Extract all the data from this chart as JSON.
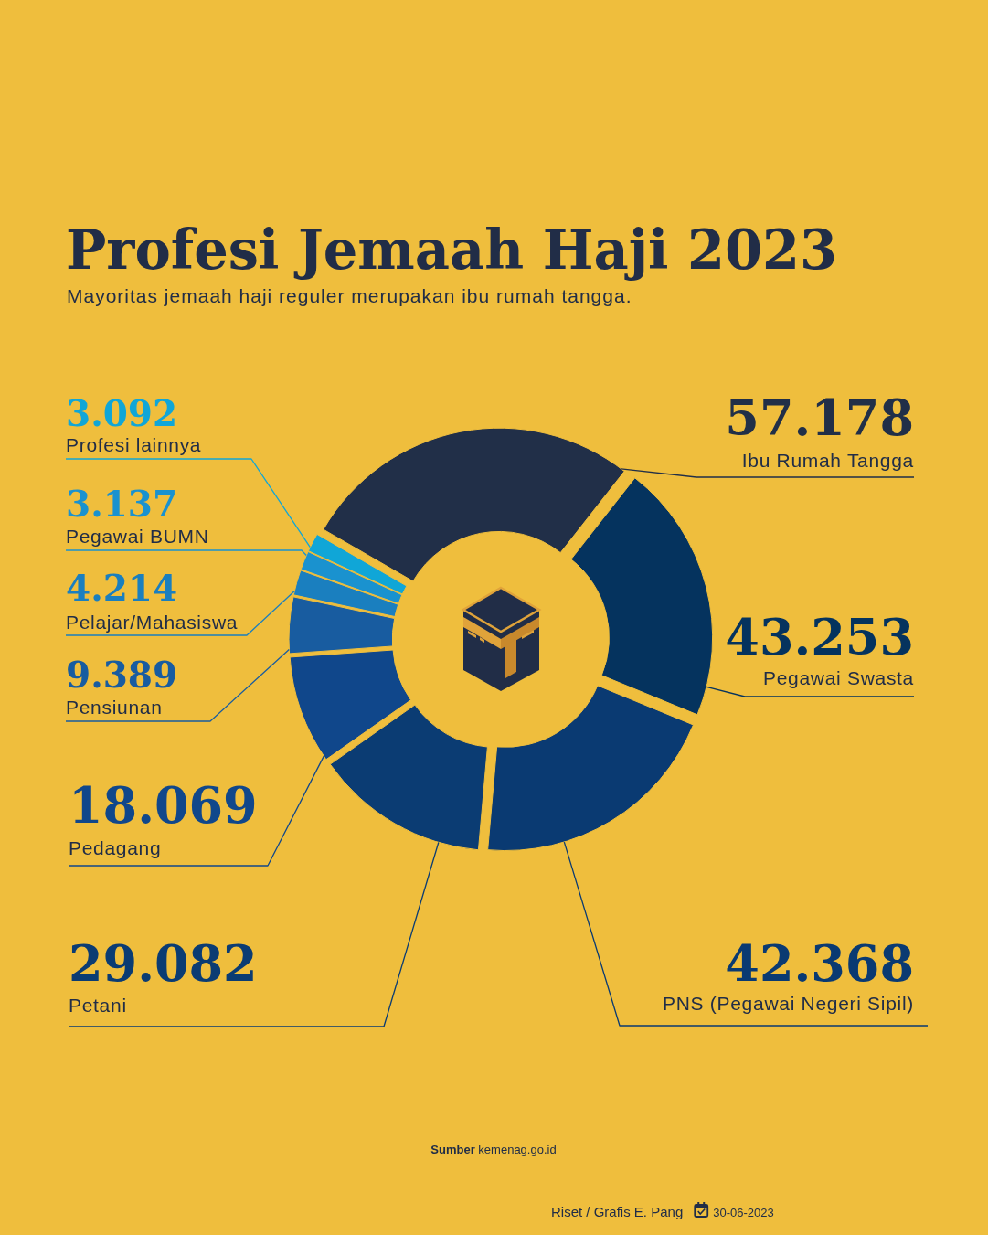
{
  "chart_data": {
    "type": "donut",
    "title": "Profesi Jemaah Haji 2023",
    "subtitle": "Mayoritas jemaah haji reguler merupakan ibu rumah tangga.",
    "categories": [
      "Ibu Rumah Tangga",
      "Pegawai Swasta",
      "PNS (Pegawai Negeri Sipil)",
      "Petani",
      "Pedagang",
      "Pensiunan",
      "Pelajar/Mahasiswa",
      "Pegawai BUMN",
      "Profesi lainnya"
    ],
    "values": [
      57178,
      43253,
      42368,
      29082,
      18069,
      9389,
      4214,
      3137,
      3092
    ],
    "colors": [
      "#212f48",
      "#05335e",
      "#0a3a72",
      "#0b3c73",
      "#10478b",
      "#185ca0",
      "#1a7fbf",
      "#1a92cf",
      "#10a6d7"
    ],
    "value_labels": [
      "57.178",
      "43.253",
      "42.368",
      "29.082",
      "18.069",
      "9.389",
      "4.214",
      "3.137",
      "3.092"
    ],
    "annotations": [
      "Sumber kemenag.go.id",
      "Riset / Grafis E. Pang",
      "30-06-2023"
    ]
  }
}
